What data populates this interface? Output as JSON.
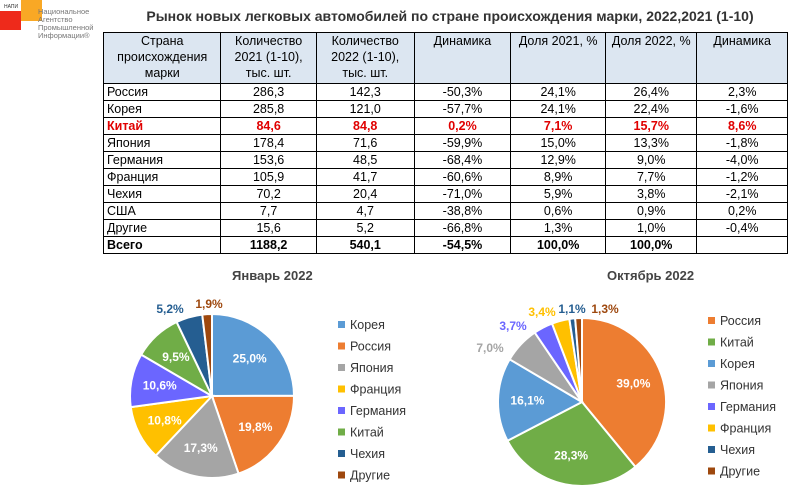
{
  "logo": {
    "small": "НАПИ",
    "text": "Национальное Агентство Промышленной Информации®"
  },
  "title": "Рынок новых легковых автомобилей по стране происхождения марки, 2022,2021 (1-10)",
  "table": {
    "headers": [
      "Страна происхождения марки",
      "Количество 2021 (1-10), тыс. шт.",
      "Количество 2022 (1-10), тыс. шт.",
      "Динамика",
      "Доля 2021, %",
      "Доля 2022, %",
      "Динамика"
    ],
    "rows": [
      [
        "Россия",
        "286,3",
        "142,3",
        "-50,3%",
        "24,1%",
        "26,4%",
        "2,3%"
      ],
      [
        "Корея",
        "285,8",
        "121,0",
        "-57,7%",
        "24,1%",
        "22,4%",
        "-1,6%"
      ],
      [
        "Китай",
        "84,6",
        "84,8",
        "0,2%",
        "7,1%",
        "15,7%",
        "8,6%"
      ],
      [
        "Япония",
        "178,4",
        "71,6",
        "-59,9%",
        "15,0%",
        "13,3%",
        "-1,8%"
      ],
      [
        "Германия",
        "153,6",
        "48,5",
        "-68,4%",
        "12,9%",
        "9,0%",
        "-4,0%"
      ],
      [
        "Франция",
        "105,9",
        "41,7",
        "-60,6%",
        "8,9%",
        "7,7%",
        "-1,2%"
      ],
      [
        "Чехия",
        "70,2",
        "20,4",
        "-71,0%",
        "5,9%",
        "3,8%",
        "-2,1%"
      ],
      [
        "США",
        "7,7",
        "4,7",
        "-38,8%",
        "0,6%",
        "0,9%",
        "0,2%"
      ],
      [
        "Другие",
        "15,6",
        "5,2",
        "-66,8%",
        "1,3%",
        "1,0%",
        "-0,4%"
      ],
      [
        "Всего",
        "1188,2",
        "540,1",
        "-54,5%",
        "100,0%",
        "100,0%",
        ""
      ]
    ]
  },
  "colors": {
    "Корея": "#5b9bd5",
    "Россия": "#ed7d31",
    "Япония": "#a5a5a5",
    "Франция": "#ffc000",
    "Германия": "#6b66ff",
    "Китай": "#70ad47",
    "Чехия": "#255e91",
    "Другие": "#9e480e"
  },
  "chart_data": [
    {
      "type": "pie",
      "title": "Январь 2022",
      "legend": "right",
      "labels": [
        "Корея",
        "Россия",
        "Япония",
        "Франция",
        "Германия",
        "Китай",
        "Чехия",
        "Другие"
      ],
      "values": [
        25.0,
        19.8,
        17.3,
        10.8,
        10.6,
        9.5,
        5.2,
        1.9
      ],
      "value_labels": [
        "25,0%",
        "19,8%",
        "17,3%",
        "10,8%",
        "10,6%",
        "9,5%",
        "5,2%",
        "1,9%"
      ]
    },
    {
      "type": "pie",
      "title": "Октябрь 2022",
      "legend": "right",
      "labels": [
        "Россия",
        "Китай",
        "Корея",
        "Япония",
        "Германия",
        "Франция",
        "Чехия",
        "Другие"
      ],
      "values": [
        39.0,
        28.3,
        16.1,
        7.0,
        3.7,
        3.4,
        1.1,
        1.3
      ],
      "value_labels": [
        "39,0%",
        "28,3%",
        "16,1%",
        "7,0%",
        "3,7%",
        "3,4%",
        "1,1%",
        "1,3%"
      ]
    }
  ]
}
